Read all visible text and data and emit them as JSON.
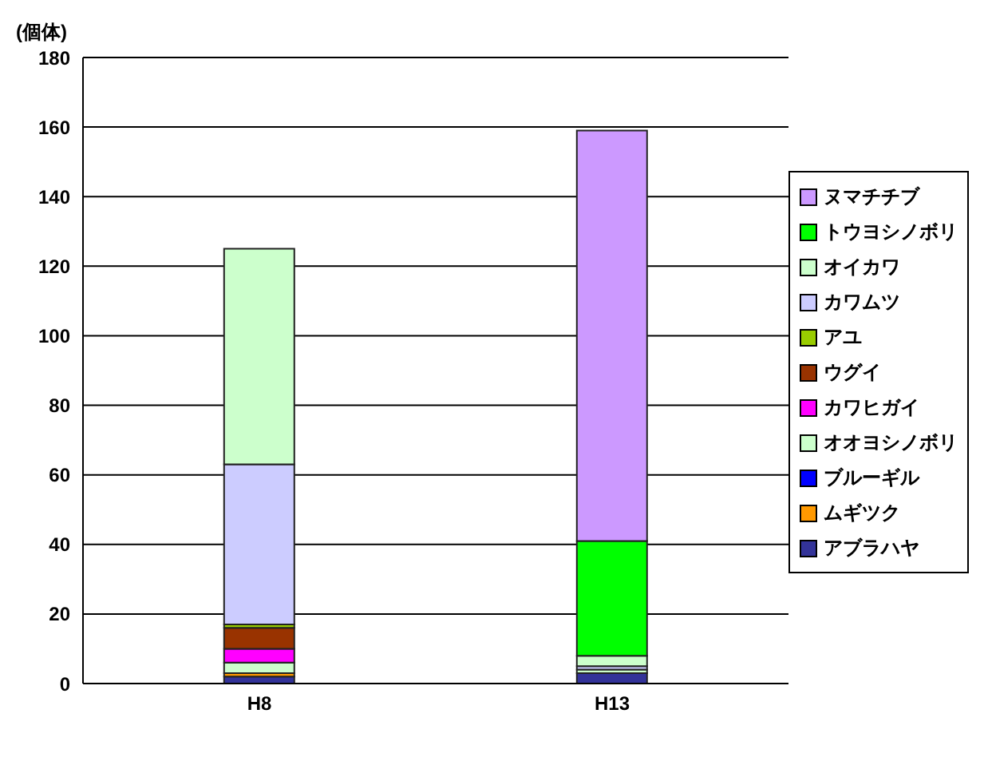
{
  "chart_data": {
    "type": "bar",
    "stacked": true,
    "ylabel": "(個体)",
    "categories": [
      "H8",
      "H13"
    ],
    "series": [
      {
        "name": "アブラハヤ",
        "color": "#333399",
        "values": [
          2,
          3
        ]
      },
      {
        "name": "ムギツク",
        "color": "#ff9900",
        "values": [
          1,
          0
        ]
      },
      {
        "name": "ブルーギル",
        "color": "#0000ff",
        "values": [
          0,
          0
        ]
      },
      {
        "name": "オオヨシノボリ",
        "color": "#ccffcc",
        "values": [
          3,
          1
        ]
      },
      {
        "name": "カワヒガイ",
        "color": "#ff00ff",
        "values": [
          4,
          0
        ]
      },
      {
        "name": "ウグイ",
        "color": "#993300",
        "values": [
          6,
          0
        ]
      },
      {
        "name": "アユ",
        "color": "#99cc00",
        "values": [
          1,
          0
        ]
      },
      {
        "name": "カワムツ",
        "color": "#ccccff",
        "values": [
          46,
          1
        ]
      },
      {
        "name": "オイカワ",
        "color": "#ccffcc",
        "values": [
          62,
          3
        ]
      },
      {
        "name": "トウヨシノボリ",
        "color": "#00ff00",
        "values": [
          0,
          33
        ]
      },
      {
        "name": "ヌマチチブ",
        "color": "#cc99ff",
        "values": [
          0,
          118
        ]
      }
    ],
    "ylim": [
      0,
      180
    ],
    "yticks": [
      0,
      20,
      40,
      60,
      80,
      100,
      120,
      140,
      160,
      180
    ],
    "grid": "y",
    "legend": "right"
  }
}
